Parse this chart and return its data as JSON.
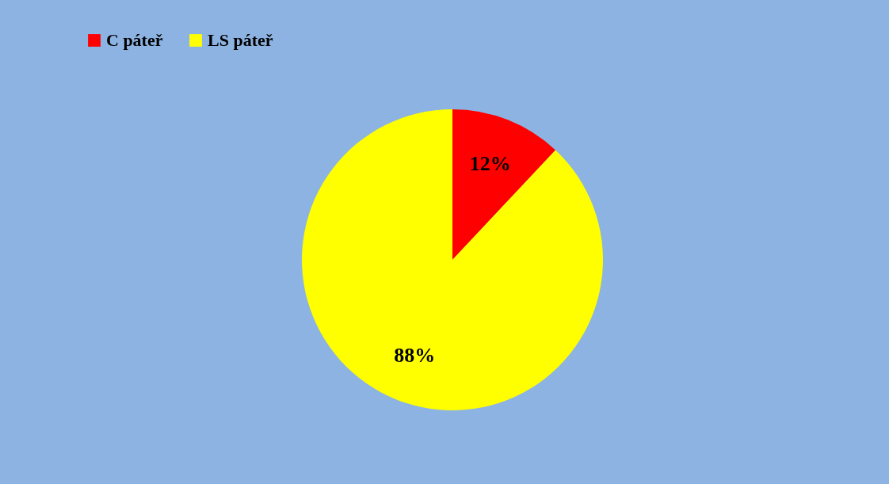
{
  "chart_data": {
    "type": "pie",
    "categories": [
      "C páteř",
      "LS páteř"
    ],
    "values": [
      12,
      88
    ],
    "colors": [
      "#ff0000",
      "#ffff00"
    ],
    "value_labels": [
      "12%",
      "88%"
    ],
    "legend": "top"
  }
}
